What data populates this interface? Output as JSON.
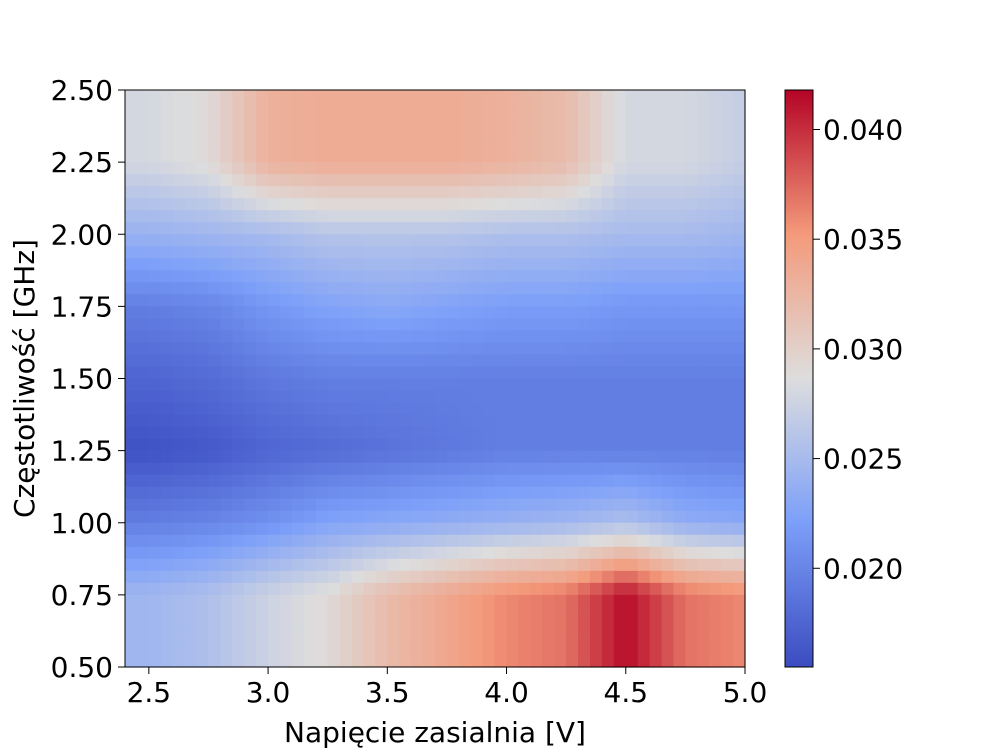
{
  "chart_data": {
    "type": "heatmap",
    "title": "",
    "xlabel": "Napięcie zasialnia [V]",
    "ylabel": "Częstotliwość [GHz]",
    "xlim": [
      2.4,
      5.0
    ],
    "ylim": [
      0.5,
      2.5
    ],
    "x_ticks": [
      "2.5",
      "3.0",
      "3.5",
      "4.0",
      "4.5",
      "5.0"
    ],
    "x_tick_values": [
      2.5,
      3.0,
      3.5,
      4.0,
      4.5,
      5.0
    ],
    "y_ticks": [
      "0.50",
      "0.75",
      "1.00",
      "1.25",
      "1.50",
      "1.75",
      "2.00",
      "2.25",
      "2.50"
    ],
    "y_tick_values": [
      0.5,
      0.75,
      1.0,
      1.25,
      1.5,
      1.75,
      2.0,
      2.25,
      2.5
    ],
    "colormap": "coolwarm",
    "colorbar": {
      "vmin": 0.0155,
      "vmax": 0.0418,
      "ticks": [
        "0.020",
        "0.025",
        "0.030",
        "0.035",
        "0.040"
      ],
      "tick_values": [
        0.02,
        0.025,
        0.03,
        0.035,
        0.04
      ]
    },
    "x_values": [
      2.5,
      2.75,
      3.0,
      3.25,
      3.5,
      3.75,
      4.0,
      4.25,
      4.5,
      4.75,
      5.0
    ],
    "y_values": [
      0.5,
      0.75,
      1.0,
      1.25,
      1.5,
      1.75,
      2.0,
      2.25,
      2.5
    ],
    "z_values": [
      [
        0.0245,
        0.0255,
        0.0275,
        0.029,
        0.032,
        0.034,
        0.036,
        0.037,
        0.0415,
        0.037,
        0.036
      ],
      [
        0.0245,
        0.0255,
        0.0275,
        0.029,
        0.032,
        0.034,
        0.036,
        0.037,
        0.0415,
        0.037,
        0.036
      ],
      [
        0.0195,
        0.02,
        0.021,
        0.0225,
        0.023,
        0.0235,
        0.024,
        0.0245,
        0.0255,
        0.0235,
        0.023
      ],
      [
        0.016,
        0.0165,
        0.0175,
        0.018,
        0.0185,
        0.019,
        0.0195,
        0.0195,
        0.0195,
        0.0195,
        0.0195
      ],
      [
        0.0175,
        0.018,
        0.019,
        0.0195,
        0.0195,
        0.0195,
        0.0195,
        0.0195,
        0.0195,
        0.0195,
        0.0195
      ],
      [
        0.0195,
        0.02,
        0.0215,
        0.0225,
        0.023,
        0.0225,
        0.022,
        0.022,
        0.0215,
        0.0215,
        0.0215
      ],
      [
        0.024,
        0.0245,
        0.025,
        0.026,
        0.026,
        0.026,
        0.0255,
        0.0255,
        0.025,
        0.025,
        0.0245
      ],
      [
        0.028,
        0.029,
        0.033,
        0.0335,
        0.0335,
        0.0335,
        0.033,
        0.032,
        0.028,
        0.028,
        0.027
      ],
      [
        0.028,
        0.029,
        0.033,
        0.0335,
        0.0335,
        0.0335,
        0.033,
        0.032,
        0.028,
        0.028,
        0.027
      ]
    ]
  }
}
